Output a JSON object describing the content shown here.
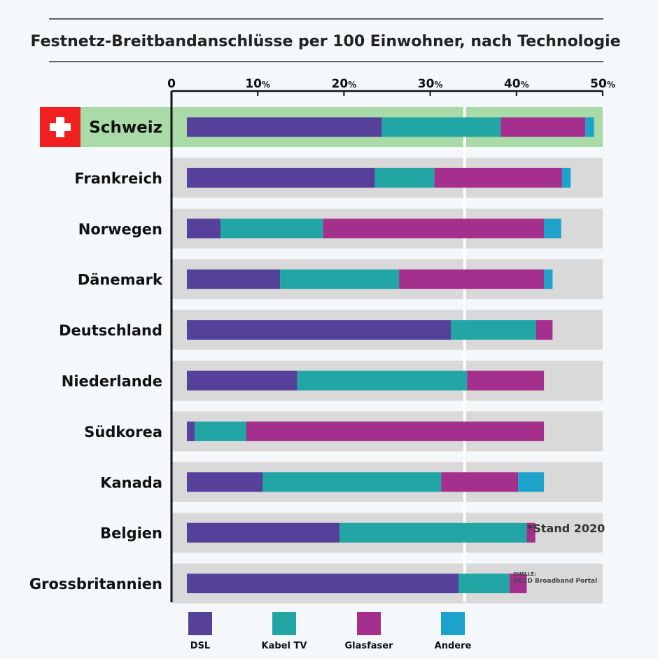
{
  "chart_data": {
    "type": "bar",
    "orientation": "horizontal",
    "stacked": true,
    "title": "Festnetz-Breitbandanschlüsse per 100 Einwohner, nach Technologie",
    "xlim": [
      0,
      50
    ],
    "x_ticks": [
      "0",
      "10",
      "20",
      "30",
      "40",
      "50"
    ],
    "x_tick_unit": "%",
    "categories": [
      "Schweiz",
      "Frankreich",
      "Norwegen",
      "Dänemark",
      "Deutschland",
      "Niederlande",
      "Südkorea",
      "Kanada",
      "Belgien",
      "Grossbritannien"
    ],
    "highlight_category": "Schweiz",
    "series": [
      {
        "name": "DSL",
        "color": "#55419a",
        "values": [
          22.6,
          21.8,
          3.9,
          10.8,
          30.6,
          12.8,
          0.9,
          8.8,
          17.7,
          31.5
        ]
      },
      {
        "name": "Kabel TV",
        "color": "#22a5a5",
        "values": [
          13.8,
          6.9,
          11.9,
          13.8,
          9.9,
          19.7,
          6.0,
          20.7,
          21.7,
          5.9
        ]
      },
      {
        "name": "Glasfaser",
        "color": "#a52f8c",
        "values": [
          9.8,
          14.8,
          25.6,
          16.8,
          1.9,
          8.9,
          34.5,
          8.9,
          1.0,
          2.0
        ]
      },
      {
        "name": "Andere",
        "color": "#1ca2cb",
        "values": [
          1.0,
          1.0,
          2.0,
          1.0,
          0,
          0,
          0,
          3.0,
          0,
          0
        ]
      }
    ],
    "grid": false,
    "legend_position": "bottom",
    "notes": [
      "*Stand 2020"
    ],
    "source_label": "QUELLE:",
    "source": "OECD Broadband Portal"
  },
  "colors": {
    "background": "#f4f8fb",
    "row_band": "#d9d9d9",
    "highlight_band": "#a8dba8",
    "flag_red": "#f0201e",
    "flag_cross": "#ffffff"
  },
  "icons": {
    "flag": "swiss-flag-icon"
  }
}
